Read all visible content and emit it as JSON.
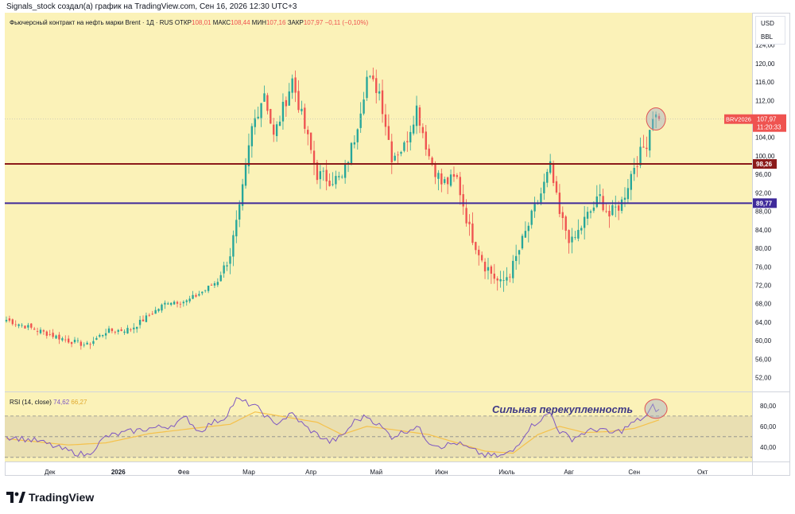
{
  "header": {
    "credit": "Signals_stock создал(а) график на TradingView.com, Сен 16, 2026 12:30 UTC+3"
  },
  "legend": {
    "instrument": "Фьючерсный контракт на нефть марки Brent",
    "sep1": "·",
    "timeframe": "1Д",
    "sep2": "·",
    "exchange": "RUS",
    "open_label": "ОТКР",
    "open_value": "108,01",
    "high_label": "МАКС",
    "high_value": "108,44",
    "low_label": "МИН",
    "low_value": "107,16",
    "close_label": "ЗАКР",
    "close_value": "107,97",
    "change": "−0,11 (−0,10%)"
  },
  "units": {
    "currency": "USD",
    "unit": "BBL"
  },
  "rsi_legend": {
    "name": "RSI (14, close)",
    "rsi_value": "74,62",
    "ma_value": "66,27"
  },
  "annotation": {
    "text": "Сильная перекупленность"
  },
  "brand": {
    "name": "TradingView"
  },
  "colors": {
    "background": "#fbf2b8",
    "up": "#26a69a",
    "down": "#ef5350",
    "level_1": "#8b1a1a",
    "level_2": "#3f2a9a",
    "rsi_line": "#7e57c2",
    "rsi_ma": "#f5c14b",
    "annotation": "#3f3a86"
  },
  "chart_data": [
    {
      "type": "candlestick",
      "title": "",
      "ylim": [
        49,
        131
      ],
      "y_ticks": [
        "128,00",
        "124,00",
        "120,00",
        "116,00",
        "112,00",
        "108,00",
        "104,00",
        "100,00",
        "96,00",
        "92,00",
        "88,00",
        "84,00",
        "80,00",
        "76,00",
        "72,00",
        "68,00",
        "64,00",
        "60,00",
        "56,00",
        "52,00"
      ],
      "x_ticks": [
        "Дек",
        "2026",
        "Фев",
        "Мар",
        "Апр",
        "Май",
        "Июн",
        "Июль",
        "Авг",
        "Сен",
        "Окт"
      ],
      "x_tick_index": [
        14,
        36,
        57,
        78,
        98,
        119,
        140,
        161,
        181,
        202,
        224
      ],
      "period_start_index": 0,
      "period_end_index": 210,
      "horizontal_levels": [
        {
          "value": 98.26,
          "label": "98,26",
          "color": "#8b1a1a"
        },
        {
          "value": 89.77,
          "label": "89,77",
          "color": "#3f2a9a"
        }
      ],
      "last_price": {
        "label": "BRV2026",
        "value": 107.97,
        "value_label": "107,97",
        "countdown": "11:20:33"
      },
      "key_points": [
        {
          "i": 0,
          "close": 64.5
        },
        {
          "i": 20,
          "close": 60.0
        },
        {
          "i": 26,
          "close": 59.0
        },
        {
          "i": 32,
          "close": 62.0
        },
        {
          "i": 40,
          "close": 62.5
        },
        {
          "i": 46,
          "close": 65.5
        },
        {
          "i": 52,
          "close": 68.5
        },
        {
          "i": 58,
          "close": 68.5
        },
        {
          "i": 64,
          "close": 71.0
        },
        {
          "i": 68,
          "close": 73.0
        },
        {
          "i": 72,
          "close": 79.0
        },
        {
          "i": 75,
          "close": 88.0
        },
        {
          "i": 79,
          "close": 106.0
        },
        {
          "i": 83,
          "close": 114.0
        },
        {
          "i": 86,
          "close": 104.0
        },
        {
          "i": 92,
          "close": 116.5
        },
        {
          "i": 96,
          "close": 106.0
        },
        {
          "i": 100,
          "close": 96.0
        },
        {
          "i": 104,
          "close": 95.0
        },
        {
          "i": 108,
          "close": 95.0
        },
        {
          "i": 112,
          "close": 104.0
        },
        {
          "i": 116,
          "close": 117.0
        },
        {
          "i": 120,
          "close": 114.0
        },
        {
          "i": 124,
          "close": 100.0
        },
        {
          "i": 128,
          "close": 102.0
        },
        {
          "i": 132,
          "close": 110.5
        },
        {
          "i": 136,
          "close": 100.0
        },
        {
          "i": 140,
          "close": 94.0
        },
        {
          "i": 145,
          "close": 95.0
        },
        {
          "i": 149,
          "close": 84.0
        },
        {
          "i": 154,
          "close": 76.5
        },
        {
          "i": 159,
          "close": 72.0
        },
        {
          "i": 163,
          "close": 76.0
        },
        {
          "i": 168,
          "close": 85.0
        },
        {
          "i": 171,
          "close": 90.0
        },
        {
          "i": 175,
          "close": 97.5
        },
        {
          "i": 178,
          "close": 87.0
        },
        {
          "i": 182,
          "close": 81.0
        },
        {
          "i": 186,
          "close": 86.0
        },
        {
          "i": 191,
          "close": 91.0
        },
        {
          "i": 194,
          "close": 87.0
        },
        {
          "i": 198,
          "close": 90.0
        },
        {
          "i": 202,
          "close": 98.0
        },
        {
          "i": 206,
          "close": 103.0
        },
        {
          "i": 208,
          "close": 109.0
        },
        {
          "i": 210,
          "close": 107.97
        }
      ]
    },
    {
      "type": "line",
      "title": "",
      "ylim": [
        26,
        93
      ],
      "y_ticks": [
        "80,00",
        "60,00",
        "40,00"
      ],
      "bands": [
        70,
        50,
        30
      ],
      "series": [
        {
          "name": "RSI",
          "color": "#7e57c2",
          "points": [
            {
              "i": 0,
              "v": 50
            },
            {
              "i": 10,
              "v": 46
            },
            {
              "i": 20,
              "v": 36
            },
            {
              "i": 26,
              "v": 32
            },
            {
              "i": 32,
              "v": 50
            },
            {
              "i": 40,
              "v": 55
            },
            {
              "i": 46,
              "v": 58
            },
            {
              "i": 52,
              "v": 60
            },
            {
              "i": 58,
              "v": 68
            },
            {
              "i": 62,
              "v": 55
            },
            {
              "i": 66,
              "v": 63
            },
            {
              "i": 70,
              "v": 68
            },
            {
              "i": 74,
              "v": 86
            },
            {
              "i": 79,
              "v": 81
            },
            {
              "i": 82,
              "v": 75
            },
            {
              "i": 86,
              "v": 62
            },
            {
              "i": 92,
              "v": 72
            },
            {
              "i": 96,
              "v": 60
            },
            {
              "i": 100,
              "v": 52
            },
            {
              "i": 104,
              "v": 45
            },
            {
              "i": 108,
              "v": 50
            },
            {
              "i": 112,
              "v": 65
            },
            {
              "i": 116,
              "v": 70
            },
            {
              "i": 120,
              "v": 61
            },
            {
              "i": 124,
              "v": 50
            },
            {
              "i": 128,
              "v": 55
            },
            {
              "i": 132,
              "v": 60
            },
            {
              "i": 136,
              "v": 45
            },
            {
              "i": 140,
              "v": 41
            },
            {
              "i": 145,
              "v": 44
            },
            {
              "i": 149,
              "v": 38
            },
            {
              "i": 154,
              "v": 32
            },
            {
              "i": 159,
              "v": 31
            },
            {
              "i": 163,
              "v": 36
            },
            {
              "i": 168,
              "v": 58
            },
            {
              "i": 171,
              "v": 65
            },
            {
              "i": 175,
              "v": 73
            },
            {
              "i": 178,
              "v": 55
            },
            {
              "i": 182,
              "v": 48
            },
            {
              "i": 186,
              "v": 54
            },
            {
              "i": 191,
              "v": 58
            },
            {
              "i": 194,
              "v": 53
            },
            {
              "i": 198,
              "v": 56
            },
            {
              "i": 202,
              "v": 64
            },
            {
              "i": 206,
              "v": 70
            },
            {
              "i": 208,
              "v": 79
            },
            {
              "i": 210,
              "v": 74.62
            }
          ]
        },
        {
          "name": "RSI-based MA",
          "color": "#f5c14b",
          "points": [
            {
              "i": 0,
              "v": 48
            },
            {
              "i": 20,
              "v": 42
            },
            {
              "i": 32,
              "v": 44
            },
            {
              "i": 46,
              "v": 53
            },
            {
              "i": 60,
              "v": 58
            },
            {
              "i": 72,
              "v": 62
            },
            {
              "i": 80,
              "v": 74
            },
            {
              "i": 88,
              "v": 70
            },
            {
              "i": 100,
              "v": 64
            },
            {
              "i": 108,
              "v": 52
            },
            {
              "i": 116,
              "v": 60
            },
            {
              "i": 124,
              "v": 57
            },
            {
              "i": 136,
              "v": 52
            },
            {
              "i": 145,
              "v": 44
            },
            {
              "i": 154,
              "v": 36
            },
            {
              "i": 163,
              "v": 34
            },
            {
              "i": 171,
              "v": 52
            },
            {
              "i": 178,
              "v": 60
            },
            {
              "i": 186,
              "v": 54
            },
            {
              "i": 194,
              "v": 55
            },
            {
              "i": 202,
              "v": 58
            },
            {
              "i": 210,
              "v": 66.27
            }
          ]
        }
      ]
    }
  ]
}
